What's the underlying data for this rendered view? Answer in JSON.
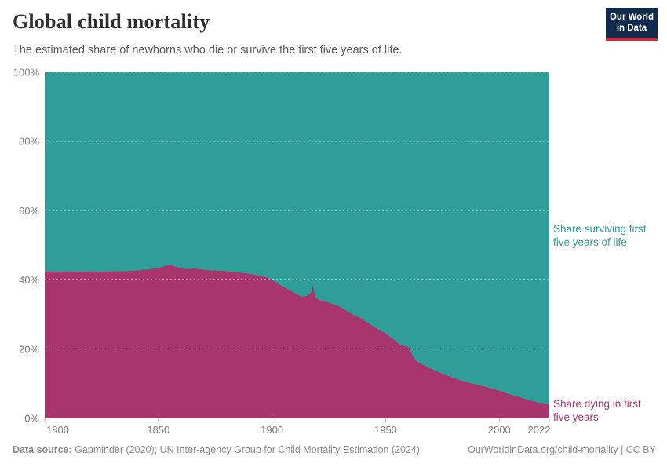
{
  "header": {
    "title": "Global child mortality",
    "subtitle": "The estimated share of newborns who die or survive the first five years of life.",
    "logo": {
      "line1": "Our World",
      "line2": "in Data",
      "bg_color": "#102a4e",
      "stripe_color": "#cb2d3a"
    }
  },
  "chart_data": {
    "type": "area",
    "stacked": true,
    "share_chart": true,
    "title": "Global child mortality",
    "unit": "%",
    "xlim": [
      1800,
      2022
    ],
    "ylim": [
      0,
      100
    ],
    "x_ticks": [
      1800,
      1850,
      1900,
      1950,
      2000,
      2022
    ],
    "y_ticks": [
      0,
      20,
      40,
      60,
      80,
      100
    ],
    "grid": "dashed horizontal, drawn over areas",
    "legend_position": "right edge area labels",
    "x": [
      1800,
      1805,
      1810,
      1815,
      1820,
      1825,
      1830,
      1835,
      1840,
      1845,
      1850,
      1853,
      1855,
      1857,
      1860,
      1863,
      1866,
      1870,
      1874,
      1878,
      1882,
      1886,
      1890,
      1894,
      1898,
      1901,
      1904,
      1907,
      1910,
      1913,
      1915,
      1917,
      1918,
      1919,
      1921,
      1924,
      1927,
      1930,
      1933,
      1936,
      1939,
      1942,
      1945,
      1948,
      1950,
      1952,
      1954,
      1956,
      1958,
      1960,
      1961,
      1962,
      1964,
      1966,
      1968,
      1970,
      1973,
      1976,
      1979,
      1982,
      1985,
      1988,
      1991,
      1994,
      1997,
      2000,
      2003,
      2006,
      2009,
      2012,
      2015,
      2018,
      2020,
      2022
    ],
    "series": [
      {
        "name": "Share dying in first five years",
        "color": "#a8356c",
        "values": [
          42.5,
          42.4,
          42.5,
          42.4,
          42.5,
          42.4,
          42.5,
          42.5,
          42.7,
          43.0,
          43.4,
          44.1,
          44.4,
          43.9,
          43.4,
          43.1,
          43.3,
          42.9,
          42.7,
          42.6,
          42.4,
          42.1,
          41.8,
          41.3,
          40.7,
          39.6,
          38.4,
          37.3,
          36.1,
          35.2,
          35.3,
          36.0,
          38.3,
          35.0,
          34.1,
          33.6,
          33.0,
          32.2,
          31.0,
          29.8,
          29.0,
          27.6,
          26.4,
          25.2,
          24.5,
          23.5,
          22.5,
          21.4,
          20.9,
          20.7,
          19.3,
          17.8,
          16.3,
          15.6,
          14.9,
          14.3,
          13.4,
          12.6,
          11.9,
          11.2,
          10.6,
          10.1,
          9.6,
          9.1,
          8.6,
          8.0,
          7.3,
          6.7,
          6.1,
          5.5,
          4.9,
          4.4,
          4.1,
          4.0
        ]
      },
      {
        "name": "Share surviving first five years of life",
        "color": "#2f9e98",
        "values": [
          57.5,
          57.6,
          57.5,
          57.6,
          57.5,
          57.6,
          57.5,
          57.5,
          57.3,
          57.0,
          56.6,
          55.9,
          55.6,
          56.1,
          56.6,
          56.9,
          56.7,
          57.1,
          57.3,
          57.4,
          57.6,
          57.9,
          58.2,
          58.7,
          59.3,
          60.4,
          61.6,
          62.7,
          63.9,
          64.8,
          64.7,
          64.0,
          61.7,
          65.0,
          65.9,
          66.4,
          67.0,
          67.8,
          69.0,
          70.2,
          71.0,
          72.4,
          73.6,
          74.8,
          75.5,
          76.5,
          77.5,
          78.6,
          79.1,
          79.3,
          80.7,
          82.2,
          83.7,
          84.4,
          85.1,
          85.7,
          86.6,
          87.4,
          88.1,
          88.8,
          89.4,
          89.9,
          90.4,
          90.9,
          91.4,
          92.0,
          92.7,
          93.3,
          93.9,
          94.5,
          95.1,
          95.6,
          95.9,
          96.0
        ]
      }
    ]
  },
  "labels": {
    "surviving": "Share surviving first\nfive years of life",
    "dying": "Share dying in first\nfive years"
  },
  "footer": {
    "source_prefix": "Data source:",
    "source_text": " Gapminder (2020); UN Inter-agency Group for Child Mortality Estimation (2024)",
    "link_text": "OurWorldinData.org/child-mortality | CC BY"
  }
}
